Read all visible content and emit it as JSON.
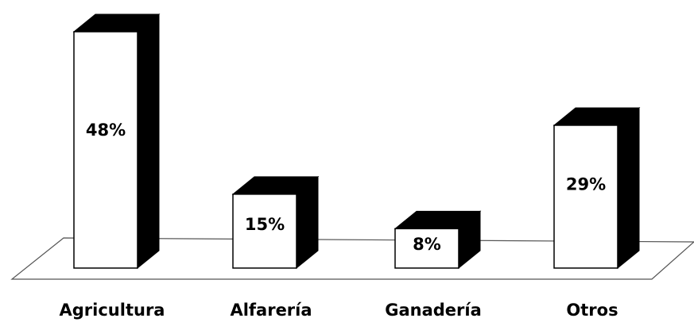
{
  "chart_data": {
    "type": "bar3d",
    "categories": [
      "Agricultura",
      "Alfarería",
      "Ganadería",
      "Otros"
    ],
    "values": [
      48,
      15,
      8,
      29
    ],
    "value_labels": [
      "48%",
      "15%",
      "8%",
      "29%"
    ],
    "color": "#ffffff",
    "side_color": "#000000"
  }
}
